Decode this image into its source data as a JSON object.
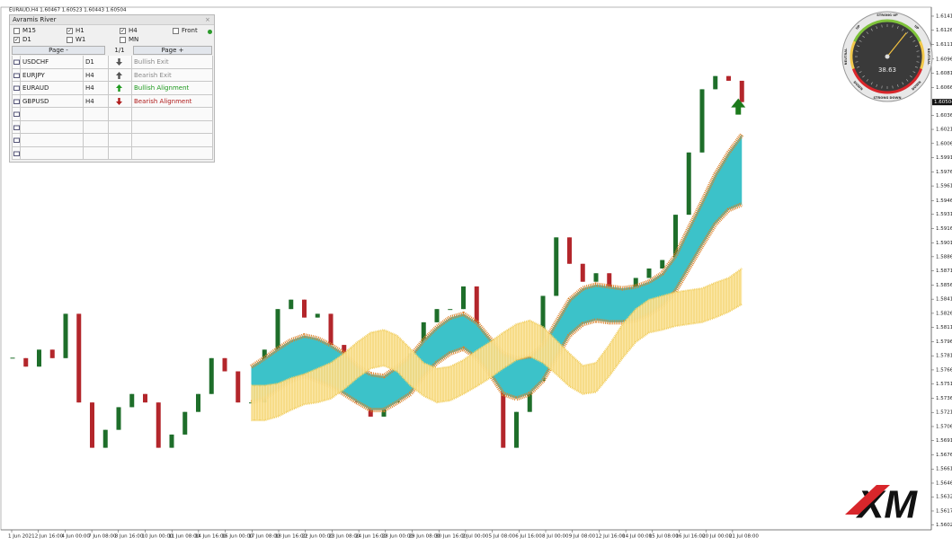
{
  "header": "EURAUD,H4  1.60467 1.60523 1.60443 1.60504",
  "panel": {
    "title": "Avramis River",
    "close": "×",
    "timeframes": [
      {
        "label": "M15",
        "checked": false
      },
      {
        "label": "H1",
        "checked": true
      },
      {
        "label": "H4",
        "checked": true
      },
      {
        "label": "Front",
        "checked": false
      },
      {
        "label": "D1",
        "checked": true
      },
      {
        "label": "W1",
        "checked": false
      },
      {
        "label": "MN",
        "checked": false
      }
    ],
    "status_color": "#2a9a2a",
    "pager": {
      "prev": "Page -",
      "page": "1/1",
      "next": "Page +"
    },
    "rows": [
      {
        "symbol": "USDCHF",
        "timeframe": "D1",
        "arrow": "down",
        "color": "#8a8a8a",
        "signal": "Bullish Exit"
      },
      {
        "symbol": "EURJPY",
        "timeframe": "H4",
        "arrow": "up",
        "color": "#8a8a8a",
        "signal": "Bearish Exit"
      },
      {
        "symbol": "EURAUD",
        "timeframe": "H4",
        "arrow": "up",
        "color": "#1f9a1f",
        "signal": "Bullish Alignment"
      },
      {
        "symbol": "GBPUSD",
        "timeframe": "H4",
        "arrow": "down",
        "color": "#b01c1c",
        "signal": "Bearish Alignment"
      }
    ]
  },
  "gauge": {
    "strong_up": "STRONG UP",
    "up": "UP",
    "neutral": "NEUTRAL",
    "down": "DOWN",
    "strong_down": "STRONG DOWN",
    "value": 38.63
  },
  "logo": "XM",
  "chart_data": {
    "type": "candlestick",
    "closes": [
      1.5779,
      1.577,
      1.5788,
      1.5779,
      1.5826,
      1.5732,
      1.5684,
      1.5703,
      1.5727,
      1.5741,
      1.5732,
      1.5684,
      1.5698,
      1.5722,
      1.5741,
      1.5779,
      1.5765,
      1.5732,
      1.5732,
      1.5788,
      1.5831,
      1.5841,
      1.5822,
      1.5826,
      1.5793,
      1.576,
      1.5732,
      1.5717,
      1.5732,
      1.5755,
      1.5784,
      1.5817,
      1.5831,
      1.5831,
      1.5855,
      1.5788,
      1.576,
      1.5684,
      1.5722,
      1.5755,
      1.5845,
      1.5907,
      1.5879,
      1.586,
      1.5869,
      1.5845,
      1.585,
      1.5864,
      1.5874,
      1.5883,
      1.5931,
      1.5997,
      1.6064,
      1.6078,
      1.6073,
      1.60504
    ],
    "up_color": "#1e6e2a",
    "down_color": "#b3262b",
    "ribbons": [
      {
        "color": "#d9822b",
        "fill": "#3cc2c9",
        "upper": [
          null,
          null,
          null,
          null,
          null,
          null,
          null,
          null,
          null,
          null,
          null,
          null,
          null,
          null,
          null,
          null,
          null,
          null,
          1.577,
          1.5779,
          1.5789,
          1.5798,
          1.5803,
          1.58,
          1.5793,
          1.5784,
          1.5771,
          1.5762,
          1.576,
          1.577,
          1.5781,
          1.5798,
          1.5812,
          1.5822,
          1.5826,
          1.5817,
          1.58,
          1.5784,
          1.5779,
          1.5781,
          1.5793,
          1.5817,
          1.5841,
          1.5853,
          1.5857,
          1.5855,
          1.5853,
          1.5855,
          1.586,
          1.5869,
          1.5888,
          1.5917,
          1.5945,
          1.5974,
          1.5997,
          1.6016
        ],
        "lower": [
          null,
          null,
          null,
          null,
          null,
          null,
          null,
          null,
          null,
          null,
          null,
          null,
          null,
          null,
          null,
          null,
          null,
          null,
          1.5732,
          1.5736,
          1.5746,
          1.5755,
          1.576,
          1.5755,
          1.5749,
          1.5741,
          1.5732,
          1.5724,
          1.5724,
          1.5732,
          1.5741,
          1.576,
          1.5774,
          1.5784,
          1.5789,
          1.5779,
          1.5762,
          1.5741,
          1.5736,
          1.5741,
          1.5755,
          1.5779,
          1.5803,
          1.5815,
          1.5819,
          1.5817,
          1.5817,
          1.5819,
          1.5825,
          1.5834,
          1.585,
          1.5874,
          1.5898,
          1.5921,
          1.5936,
          1.5942
        ]
      },
      {
        "color": "#f2cf62",
        "fill": "#fbe6a2",
        "upper": [
          null,
          null,
          null,
          null,
          null,
          null,
          null,
          null,
          null,
          null,
          null,
          null,
          null,
          null,
          null,
          null,
          null,
          null,
          1.575,
          1.575,
          1.5752,
          1.5758,
          1.5762,
          1.5768,
          1.5774,
          1.5784,
          1.5796,
          1.5806,
          1.5809,
          1.5803,
          1.5789,
          1.5774,
          1.5768,
          1.577,
          1.5777,
          1.5787,
          1.5796,
          1.5806,
          1.5815,
          1.5819,
          1.5812,
          1.5798,
          1.5784,
          1.5771,
          1.5774,
          1.5793,
          1.5815,
          1.5831,
          1.5841,
          1.5845,
          1.5849,
          1.5851,
          1.5853,
          1.5859,
          1.5864,
          1.5874
        ],
        "lower": [
          null,
          null,
          null,
          null,
          null,
          null,
          null,
          null,
          null,
          null,
          null,
          null,
          null,
          null,
          null,
          null,
          null,
          null,
          1.5713,
          1.5713,
          1.5717,
          1.5724,
          1.573,
          1.5732,
          1.5736,
          1.5746,
          1.5758,
          1.5768,
          1.5771,
          1.5765,
          1.575,
          1.5739,
          1.5732,
          1.5734,
          1.5741,
          1.5749,
          1.5758,
          1.5768,
          1.5777,
          1.5781,
          1.5774,
          1.5762,
          1.5749,
          1.5741,
          1.5743,
          1.576,
          1.5779,
          1.5796,
          1.5806,
          1.5809,
          1.5813,
          1.5815,
          1.5817,
          1.5822,
          1.5828,
          1.5836
        ]
      }
    ],
    "ylim": [
      1.5597,
      1.6151
    ],
    "yticks": [
      1.61415,
      1.61265,
      1.61115,
      {
        "value": 1.6096,
        "label": "1.60960"
      },
      {
        "value": 1.6081,
        "label": "1.60810"
      },
      {
        "value": 1.6066,
        "label": "1.60660"
      },
      1.60365,
      1.60215,
      1.60065,
      1.59915,
      1.59765,
      1.59615,
      {
        "value": 1.5946,
        "label": "1.59460"
      },
      1.59315,
      1.59165,
      {
        "value": 1.5901,
        "label": "1.59010"
      },
      1.58865,
      1.58715,
      1.58565,
      1.58415,
      1.58265,
      1.58115,
      1.57965,
      1.57815,
      1.57665,
      1.57515,
      1.57365,
      1.57215,
      1.57065,
      1.56915,
      1.56765,
      1.56615,
      1.56465,
      {
        "value": 1.5632,
        "label": "1.56320"
      },
      {
        "value": 1.5617,
        "label": "1.56170"
      },
      {
        "value": 1.5602,
        "label": "1.56020"
      }
    ],
    "x_labels": [
      "1 Jun 2021",
      "2 Jun 16:00",
      "4 Jun 00:00",
      "7 Jun 08:00",
      "8 Jun 16:00",
      "10 Jun 00:00",
      "11 Jun 08:00",
      "14 Jun 16:00",
      "16 Jun 00:00",
      "17 Jun 08:00",
      "18 Jun 16:00",
      "22 Jun 00:00",
      "23 Jun 08:00",
      "24 Jun 16:00",
      "28 Jun 00:00",
      "29 Jun 08:00",
      "30 Jun 16:00",
      "2 Jul 00:00",
      "5 Jul 08:00",
      "6 Jul 16:00",
      "8 Jul 00:00",
      "9 Jul 08:00",
      "12 Jul 16:00",
      "14 Jul 00:00",
      "15 Jul 08:00",
      "16 Jul 16:00",
      "20 Jul 00:00",
      "21 Jul 08:00"
    ]
  }
}
